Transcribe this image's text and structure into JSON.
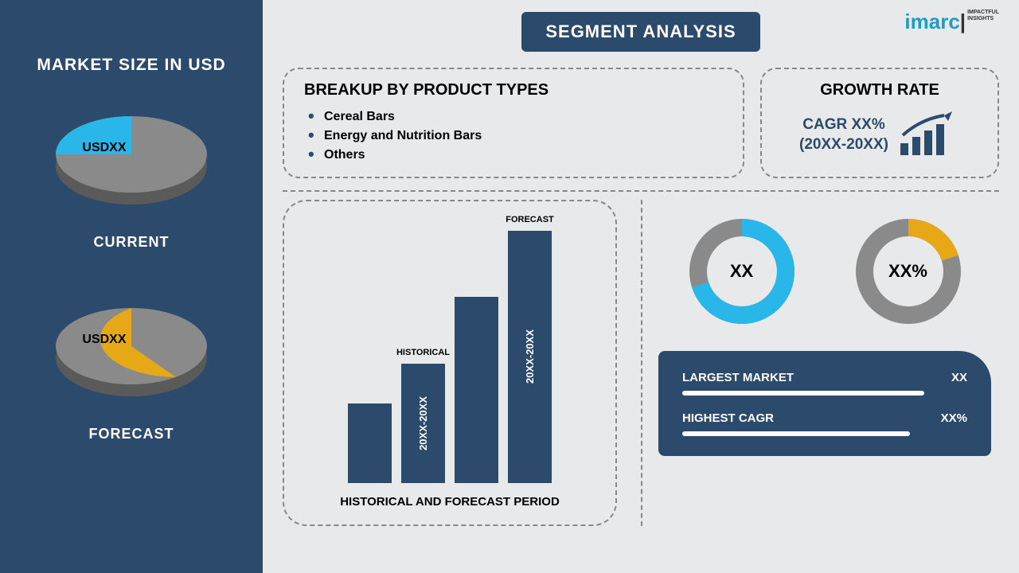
{
  "left": {
    "title": "MARKET SIZE IN USD",
    "pies": [
      {
        "label": "USDXX",
        "caption": "CURRENT",
        "slice_pct": 25,
        "slice_color": "#29b6e8",
        "rest_color": "#8a8a8a",
        "depth_color": "#5a5a5a"
      },
      {
        "label": "USDXX",
        "caption": "FORECAST",
        "slice_pct": 60,
        "slice_color": "#e6a817",
        "rest_color": "#8a8a8a",
        "depth_color": "#5a5a5a"
      }
    ]
  },
  "logo": {
    "brand": "imarc",
    "tag1": "IMPACTFUL",
    "tag2": "INSIGHTS"
  },
  "banner": "SEGMENT ANALYSIS",
  "breakup": {
    "title": "BREAKUP BY PRODUCT TYPES",
    "items": [
      "Cereal Bars",
      "Energy and Nutrition Bars",
      "Others"
    ]
  },
  "growth": {
    "title": "GROWTH RATE",
    "line1": "CAGR XX%",
    "line2": "(20XX-20XX)",
    "icon_color": "#2c4a6b"
  },
  "hist": {
    "caption": "HISTORICAL AND FORECAST PERIOD",
    "bars": [
      {
        "height_pct": 30,
        "vtext": "",
        "toplabel": ""
      },
      {
        "height_pct": 45,
        "vtext": "20XX-20XX",
        "toplabel": "HISTORICAL"
      },
      {
        "height_pct": 70,
        "vtext": "",
        "toplabel": ""
      },
      {
        "height_pct": 95,
        "vtext": "20XX-20XX",
        "toplabel": "FORECAST"
      }
    ],
    "bar_color": "#2c4a6b"
  },
  "donuts": [
    {
      "center": "XX",
      "pct": 70,
      "fg": "#29b6e8",
      "bg": "#8a8a8a",
      "stroke": 22
    },
    {
      "center": "XX%",
      "pct": 20,
      "fg": "#e6a817",
      "bg": "#8a8a8a",
      "stroke": 22
    }
  ],
  "info": {
    "rows": [
      {
        "label": "LARGEST MARKET",
        "value": "XX",
        "bar_pct": 85
      },
      {
        "label": "HIGHEST CAGR",
        "value": "XX%",
        "bar_pct": 80
      }
    ],
    "bg": "#2c4a6b"
  }
}
